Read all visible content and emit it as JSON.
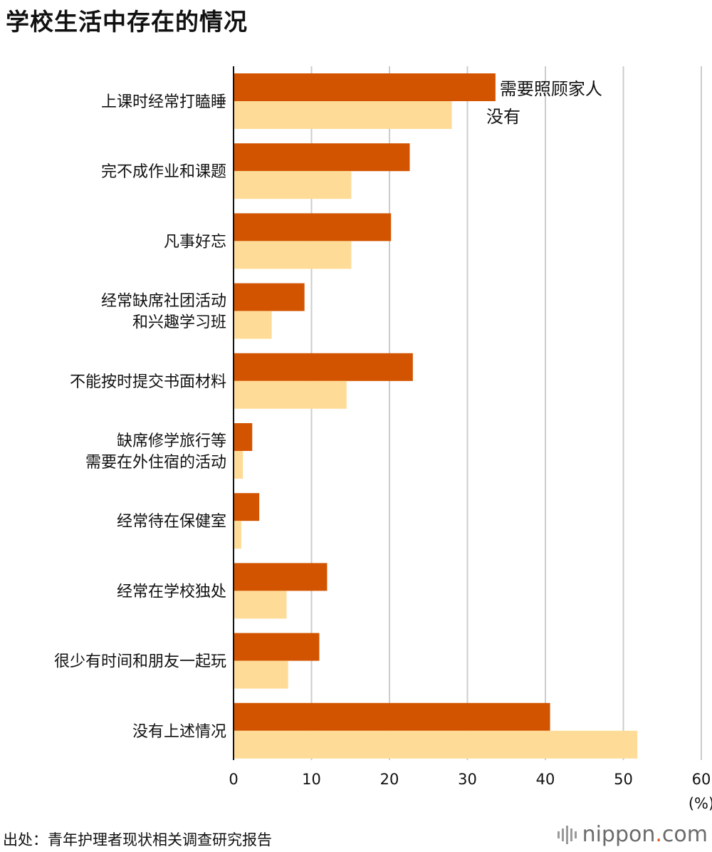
{
  "title": "学校生活中存在的情况",
  "source": "出处：青年护理者现状相关调查研究报告",
  "brand": {
    "name": "nippon",
    "dot": ".",
    "suffix": "com"
  },
  "colors": {
    "series1": "#d35400",
    "series2": "#fedc98",
    "grid": "#cccccc",
    "axis": "#111111"
  },
  "chart_data": {
    "type": "bar",
    "orientation": "horizontal",
    "title": "学校生活中存在的情况",
    "categories": [
      [
        "上课时经常打瞌睡"
      ],
      [
        "完不成作业和课题"
      ],
      [
        "凡事好忘"
      ],
      [
        "经常缺席社团活动",
        "和兴趣学习班"
      ],
      [
        "不能按时提交书面材料"
      ],
      [
        "缺席修学旅行等",
        "需要在外住宿的活动"
      ],
      [
        "经常待在保健室"
      ],
      [
        "经常在学校独处"
      ],
      [
        "很少有时间和朋友一起玩"
      ],
      [
        "没有上述情况"
      ]
    ],
    "series": [
      {
        "name": "需要照顾家人",
        "color": "#d35400",
        "values": [
          33.6,
          22.6,
          20.2,
          9.1,
          23.0,
          2.4,
          3.3,
          12.0,
          11.0,
          40.6
        ]
      },
      {
        "name": "没有",
        "color": "#fedc98",
        "values": [
          28.0,
          15.1,
          15.1,
          4.9,
          14.5,
          1.2,
          1.0,
          6.8,
          7.0,
          51.8
        ]
      }
    ],
    "xlim": [
      0,
      60
    ],
    "xticks": [
      0,
      10,
      20,
      30,
      40,
      50,
      60
    ],
    "xunit": "(%)",
    "grid": true,
    "legend": "inline-right-of-first-bar"
  }
}
